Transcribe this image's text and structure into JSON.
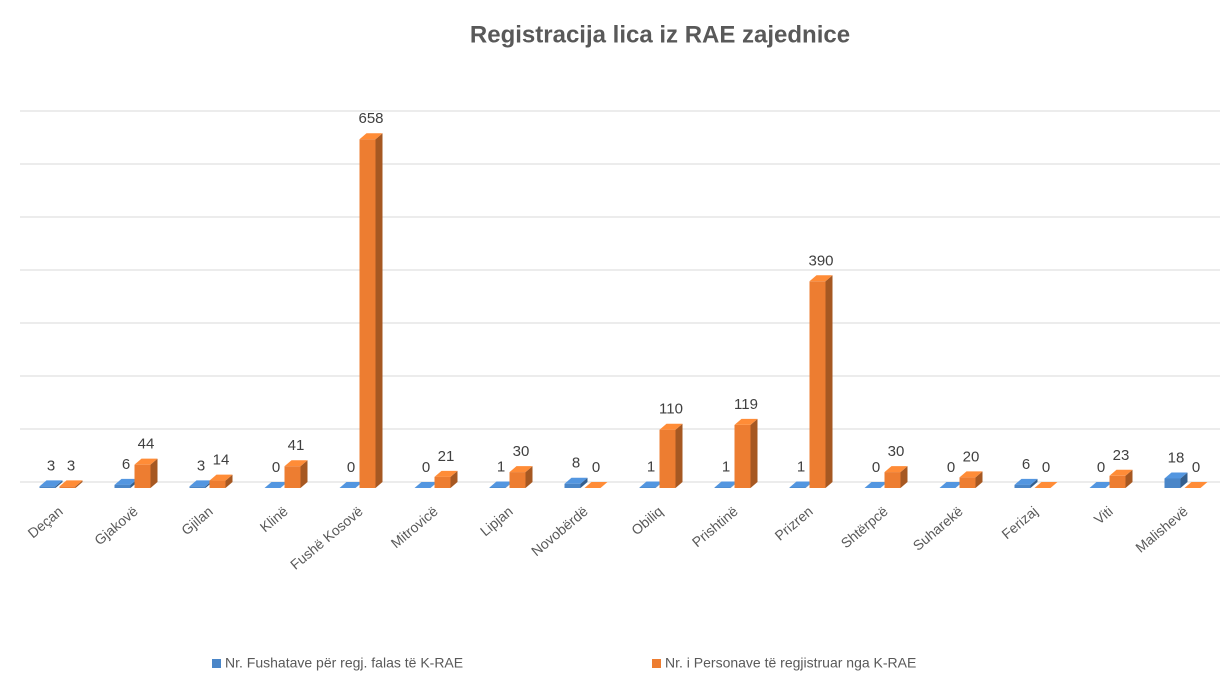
{
  "chart_data": {
    "type": "bar3d",
    "title": "Registracija lica iz RAE zajednice",
    "categories": [
      "Deçan",
      "Gjakovë",
      "Gjilan",
      "Klinë",
      "Fushë Kosovë",
      "Mitrovicë",
      "Lipjan",
      "Novobërdë",
      "Obiliq",
      "Prishtinë",
      "Prizren",
      "Shtërpcë",
      "Suharekë",
      "Ferizaj",
      "Viti",
      "Malishevë"
    ],
    "series": [
      {
        "name": "Nr. Fushatave për regj. falas të K-RAE",
        "color": "#4a86c8",
        "values": [
          3,
          6,
          3,
          0,
          0,
          0,
          1,
          8,
          1,
          1,
          1,
          0,
          0,
          6,
          0,
          18
        ]
      },
      {
        "name": "Nr. i Personave të regjistruar nga K-RAE",
        "color": "#ed7d31",
        "values": [
          3,
          44,
          14,
          41,
          658,
          21,
          30,
          0,
          110,
          119,
          390,
          30,
          20,
          0,
          23,
          0
        ]
      }
    ],
    "ylim": [
      0,
      700
    ],
    "yticks": [
      0,
      100,
      200,
      300,
      400,
      500,
      600,
      700
    ],
    "grid": true,
    "legend": "bottom"
  }
}
